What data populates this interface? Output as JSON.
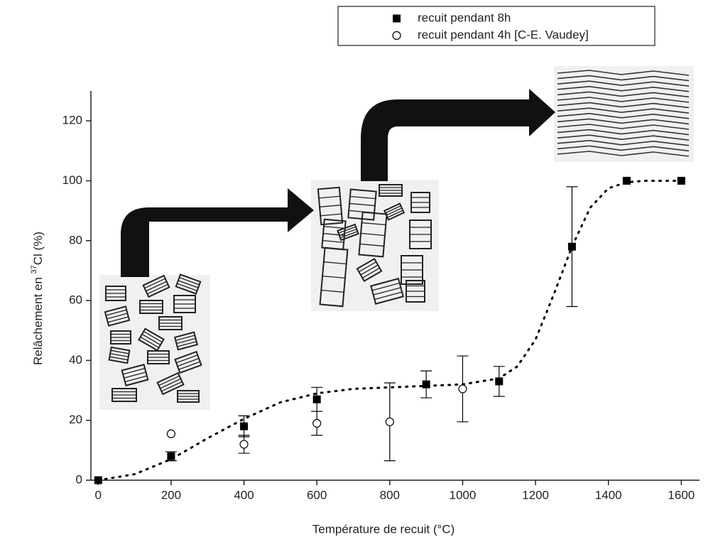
{
  "chart_data": {
    "type": "scatter",
    "xlabel": "Température de recuit (°C)",
    "ylabel": {
      "text": "Relâchement en ",
      "sup": "37",
      "rest": "Cl (%)"
    },
    "xlim": [
      -20,
      1650
    ],
    "ylim": [
      0,
      130
    ],
    "xticks": [
      0,
      200,
      400,
      600,
      800,
      1000,
      1200,
      1400,
      1600
    ],
    "yticks": [
      0,
      20,
      40,
      60,
      80,
      100,
      120
    ],
    "legend": "top-right",
    "series": [
      {
        "name": "recuit pendant 8h",
        "marker": "square",
        "color": "#000000",
        "x": [
          0,
          200,
          400,
          600,
          900,
          1100,
          1300,
          1450,
          1600
        ],
        "values": [
          0,
          8,
          18,
          27,
          32,
          33,
          78,
          100,
          100
        ],
        "errors": [
          null,
          1.5,
          3.5,
          4,
          4.5,
          5,
          20,
          null,
          null
        ]
      },
      {
        "name": "recuit pendant 4h [C-E. Vaudey]",
        "marker": "circle",
        "color": "#000000",
        "x": [
          200,
          400,
          600,
          800,
          1000
        ],
        "values": [
          15.5,
          12,
          19,
          19.5,
          30.5
        ],
        "errors": [
          null,
          3,
          4,
          13,
          11
        ]
      }
    ],
    "fit": {
      "color": "#000000",
      "x": [
        0,
        100,
        200,
        300,
        400,
        500,
        600,
        700,
        800,
        900,
        1000,
        1100,
        1150,
        1200,
        1250,
        1300,
        1350,
        1400,
        1450,
        1500,
        1600
      ],
      "values": [
        0,
        2,
        7,
        14,
        20.5,
        26,
        29,
        30.5,
        31,
        31.5,
        32,
        34,
        38,
        47,
        62,
        78,
        91,
        97.5,
        99.5,
        100,
        100
      ]
    }
  }
}
